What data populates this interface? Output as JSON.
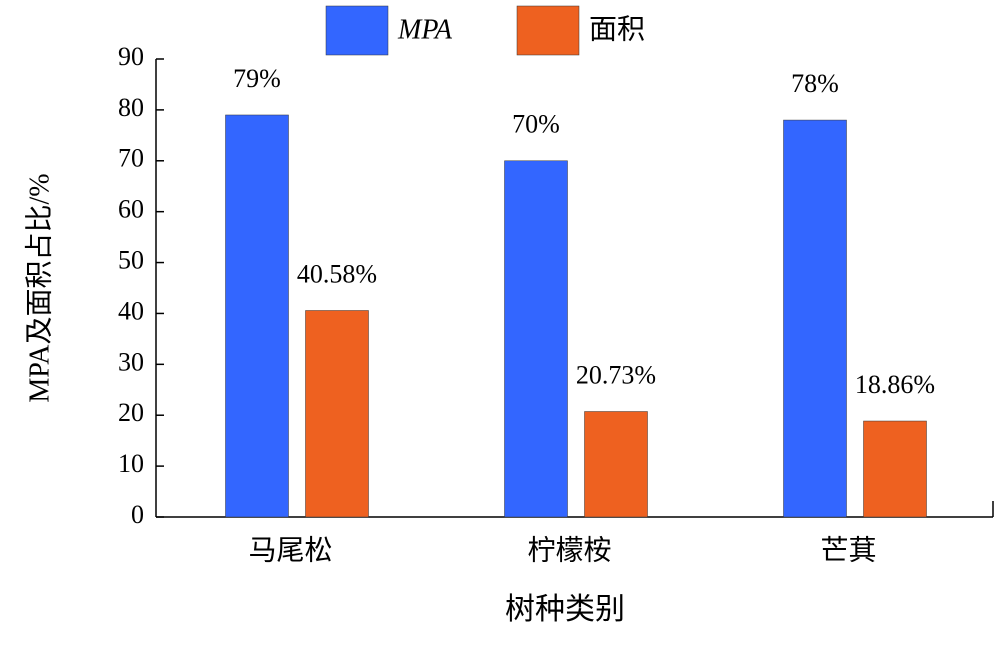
{
  "chart_data": {
    "type": "bar",
    "categories": [
      "马尾松",
      "柠檬桉",
      "芒萁"
    ],
    "series": [
      {
        "name": "MPA",
        "color": "#3366ff",
        "values": [
          79,
          70,
          78
        ],
        "value_labels": [
          "79%",
          "70%",
          "78%"
        ]
      },
      {
        "name": "面积",
        "color": "#ee6120",
        "values": [
          40.58,
          20.73,
          18.86
        ],
        "value_labels": [
          "40.58%",
          "20.73%",
          "18.86%"
        ]
      }
    ],
    "x_label": "树种类别",
    "y_label": "MPA及面积占比/%",
    "ylim": [
      0,
      90
    ],
    "yticks": [
      0,
      10,
      20,
      30,
      40,
      50,
      60,
      70,
      80,
      90
    ],
    "legend": "top"
  }
}
